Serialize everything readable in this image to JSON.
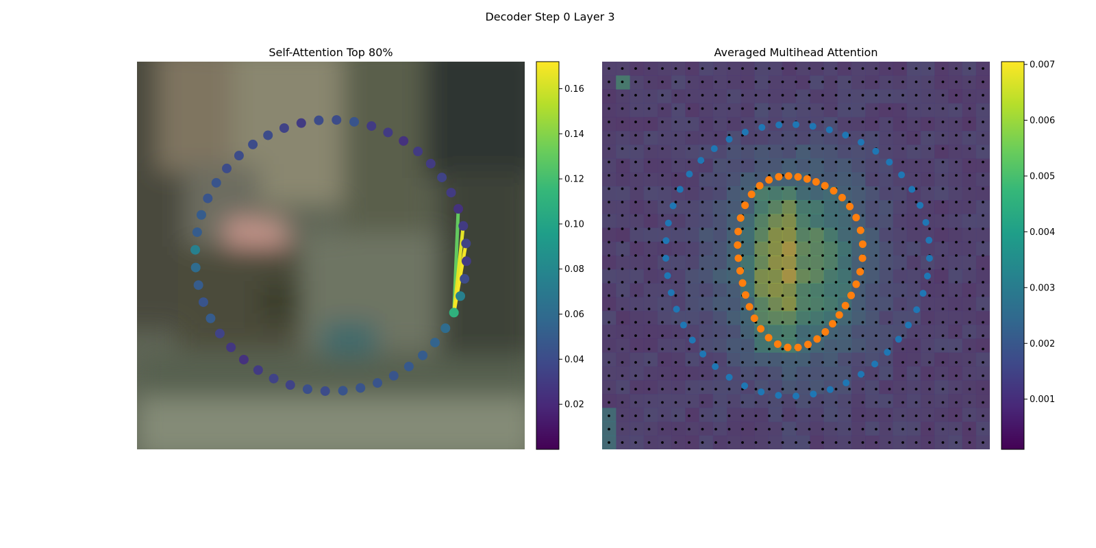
{
  "figure": {
    "suptitle": "Decoder Step 0 Layer 3"
  },
  "colors": {
    "viridis": [
      "#440154",
      "#482878",
      "#3e4989",
      "#31688e",
      "#26828e",
      "#1f9e89",
      "#35b779",
      "#6ece58",
      "#b5de2b",
      "#fde725"
    ],
    "blue_points": "#1f77b4",
    "orange_points": "#ff7f0e",
    "grid_dots": "#000000"
  },
  "chart_data": [
    {
      "type": "scatter",
      "title": "Self-Attention Top 80%",
      "background": "blurred street photo",
      "colorbar": {
        "min": 0.0,
        "max": 0.172,
        "ticks": [
          "0.02",
          "0.04",
          "0.06",
          "0.08",
          "0.10",
          "0.12",
          "0.14",
          "0.16"
        ],
        "tick_values": [
          0.02,
          0.04,
          0.06,
          0.08,
          0.1,
          0.12,
          0.14,
          0.16
        ]
      },
      "points_note": "48 contour points on a circle, coloured by self-attention weight",
      "point_values": [
        0.06,
        0.055,
        0.05,
        0.048,
        0.045,
        0.045,
        0.045,
        0.045,
        0.04,
        0.042,
        0.035,
        0.035,
        0.03,
        0.025,
        0.028,
        0.035,
        0.05,
        0.045,
        0.05,
        0.06,
        0.075,
        0.05,
        0.05,
        0.045,
        0.045,
        0.04,
        0.04,
        0.04,
        0.04,
        0.035,
        0.03,
        0.04,
        0.04,
        0.045,
        0.03,
        0.03,
        0.025,
        0.03,
        0.03,
        0.035,
        0.03,
        0.025,
        0.03,
        0.035,
        0.03,
        0.04,
        0.075,
        0.11
      ],
      "attention_lines": [
        {
          "from": 47,
          "to": 41,
          "weight": 0.13
        },
        {
          "from": 47,
          "to": 42,
          "weight": 0.165
        },
        {
          "from": 47,
          "to": 43,
          "weight": 0.17
        }
      ]
    },
    {
      "type": "heatmap",
      "title": "Averaged Multihead Attention",
      "grid": {
        "rows": 28,
        "cols": 28
      },
      "colorbar": {
        "min": 0.0001,
        "max": 0.00705,
        "ticks": [
          "0.001",
          "0.002",
          "0.003",
          "0.004",
          "0.005",
          "0.006",
          "0.007"
        ],
        "tick_values": [
          0.001,
          0.002,
          0.003,
          0.004,
          0.005,
          0.006,
          0.007
        ]
      },
      "series": [
        {
          "role": "predicted contour (outer)",
          "color": "blue",
          "shape": "ring",
          "count": 48
        },
        {
          "role": "predicted contour (inner)",
          "color": "orange",
          "shape": "ring",
          "count": 40
        }
      ]
    }
  ]
}
